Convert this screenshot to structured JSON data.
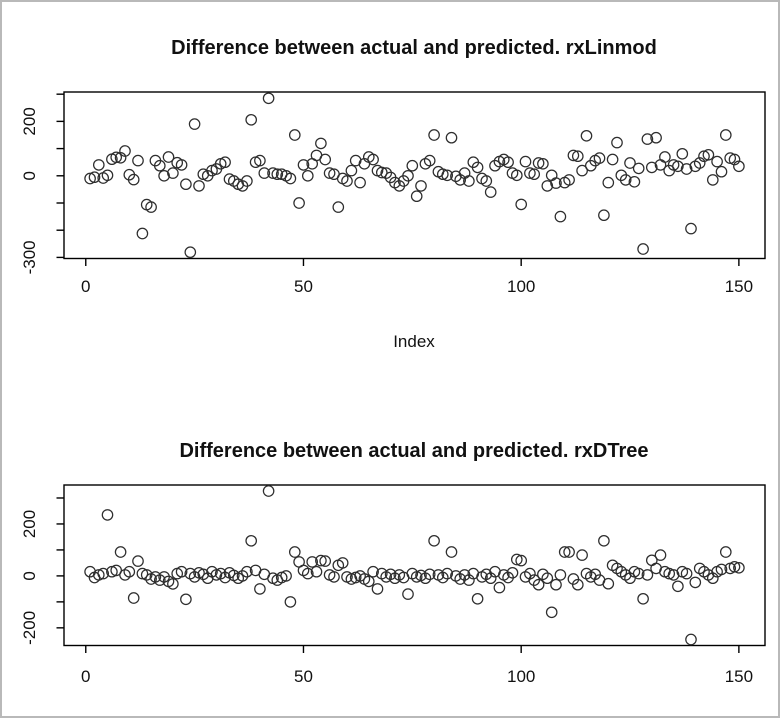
{
  "frame": {
    "border_color": "#b9b9b9",
    "background": "#ffffff"
  },
  "marker_color": "#2e2e2e",
  "chart_data": [
    {
      "type": "scatter",
      "title": "Difference between actual and predicted. rxLinmod",
      "xlabel": "Index",
      "ylabel": "",
      "marker": "open-circle",
      "grid": false,
      "x_ticks": [
        0,
        50,
        100,
        150
      ],
      "y_ticks": [
        300,
        200,
        100,
        0,
        -100,
        -200,
        -300
      ],
      "y_tick_labels_visible": [
        200,
        0,
        -300
      ],
      "xlim": [
        -5,
        156
      ],
      "ylim": [
        -304,
        308
      ],
      "x": {
        "start": 1,
        "step": 1,
        "count": 150
      },
      "y": [
        -10,
        -5,
        40,
        -8,
        2,
        61,
        68,
        66,
        91,
        4,
        -14,
        56,
        -212,
        -106,
        -115,
        56,
        37,
        0,
        69,
        10,
        48,
        40,
        -31,
        -281,
        190,
        -37,
        6,
        0,
        19,
        25,
        44,
        50,
        -12,
        -19,
        -31,
        -37,
        -19,
        206,
        50,
        56,
        10,
        285,
        10,
        6,
        6,
        0,
        -10,
        150,
        -100,
        40,
        0,
        44,
        75,
        119,
        60,
        10,
        6,
        -115,
        -10,
        -19,
        19,
        56,
        -25,
        44,
        69,
        60,
        19,
        12,
        10,
        -6,
        -25,
        -37,
        -19,
        0,
        37,
        -75,
        -37,
        44,
        56,
        150,
        15,
        6,
        2,
        140,
        -2,
        -15,
        10,
        -19,
        50,
        31,
        -10,
        -19,
        -60,
        37,
        52,
        60,
        50,
        10,
        2,
        -105,
        52,
        10,
        6,
        47,
        44,
        -37,
        2,
        -27,
        -150,
        -25,
        -15,
        75,
        72,
        19,
        147,
        37,
        56,
        65,
        -145,
        -25,
        60,
        122,
        2,
        -15,
        47,
        -22,
        27,
        -269,
        135,
        31,
        140,
        40,
        69,
        19,
        40,
        35,
        81,
        25,
        -194,
        35,
        47,
        72,
        77,
        -15,
        52,
        15,
        150,
        65,
        60,
        35
      ]
    },
    {
      "type": "scatter",
      "title": "Difference between actual and predicted. rxDTree",
      "xlabel": "",
      "ylabel": "",
      "marker": "open-circle",
      "grid": false,
      "x_ticks": [
        0,
        50,
        100,
        150
      ],
      "y_ticks": [
        300,
        200,
        100,
        0,
        -100,
        -200
      ],
      "y_tick_labels_visible": [
        200,
        0,
        -200
      ],
      "xlim": [
        -5,
        156
      ],
      "ylim": [
        -268,
        350
      ],
      "x": {
        "start": 1,
        "step": 1,
        "count": 150
      },
      "y": [
        16,
        -6,
        4,
        9,
        235,
        16,
        21,
        92,
        4,
        16,
        -85,
        57,
        9,
        4,
        -12,
        -4,
        -16,
        -4,
        -21,
        -31,
        9,
        16,
        -90,
        9,
        -4,
        12,
        6,
        -9,
        16,
        4,
        9,
        -6,
        12,
        2,
        -9,
        0,
        16,
        135,
        21,
        -50,
        6,
        327,
        -9,
        -16,
        -6,
        0,
        -100,
        92,
        54,
        21,
        9,
        54,
        16,
        59,
        57,
        4,
        -4,
        41,
        50,
        -4,
        -12,
        -6,
        0,
        -12,
        -21,
        16,
        -50,
        9,
        -4,
        6,
        -9,
        4,
        -6,
        -70,
        9,
        -4,
        2,
        -9,
        6,
        135,
        4,
        -6,
        9,
        92,
        0,
        -12,
        4,
        -16,
        9,
        -88,
        -4,
        6,
        -9,
        16,
        -45,
        4,
        -6,
        12,
        63,
        59,
        -4,
        9,
        -16,
        -34,
        6,
        -9,
        -140,
        -34,
        4,
        92,
        92,
        -12,
        -34,
        80,
        9,
        -4,
        6,
        -16,
        135,
        -30,
        41,
        29,
        16,
        4,
        -9,
        16,
        9,
        -88,
        4,
        60,
        29,
        80,
        16,
        9,
        4,
        -40,
        16,
        9,
        -245,
        -25,
        29,
        16,
        4,
        -9,
        16,
        25,
        92,
        29,
        35,
        31
      ]
    }
  ]
}
